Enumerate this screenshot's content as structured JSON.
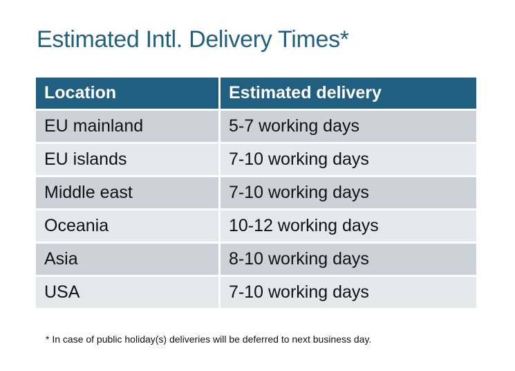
{
  "title": "Estimated Intl. Delivery Times*",
  "table": {
    "headers": [
      "Location",
      "Estimated delivery"
    ],
    "rows": [
      [
        "EU mainland",
        "5-7 working days"
      ],
      [
        "EU islands",
        "7-10 working days"
      ],
      [
        "Middle east",
        "7-10 working days"
      ],
      [
        "Oceania",
        "10-12 working days"
      ],
      [
        "Asia",
        "8-10 working days"
      ],
      [
        "USA",
        "7-10 working days"
      ]
    ]
  },
  "footnote": "* In case of public holiday(s) deliveries will be deferred to next business day.",
  "colors": {
    "header": "#215f80",
    "row_odd": "#cdd2d9",
    "row_even": "#e5e8eb",
    "title": "#1f5f80"
  }
}
